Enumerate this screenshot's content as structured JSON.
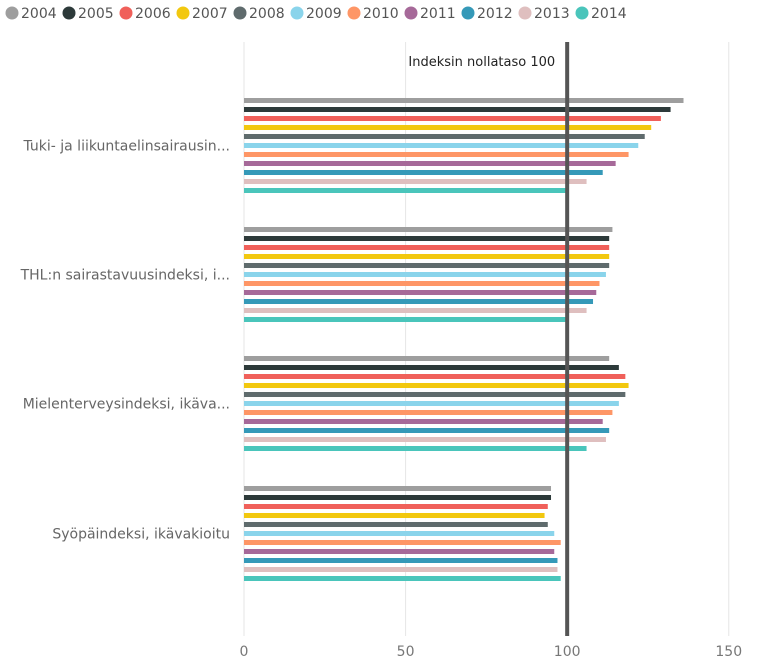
{
  "chart_data": {
    "type": "bar",
    "orientation": "horizontal",
    "categories": [
      "Tuki- ja liikuntaelinsairausin...",
      "THL:n sairastavuusindeksi, i...",
      "Mielenterveysindeksi, ikäva...",
      "Syöpäindeksi, ikävakioitu"
    ],
    "series": [
      {
        "name": "2004",
        "color": "#9e9e9e",
        "values": [
          136,
          114,
          113,
          95
        ]
      },
      {
        "name": "2005",
        "color": "#2d3a3a",
        "values": [
          132,
          113,
          116,
          95
        ]
      },
      {
        "name": "2006",
        "color": "#f0605a",
        "values": [
          129,
          113,
          118,
          94
        ]
      },
      {
        "name": "2007",
        "color": "#f2c80f",
        "values": [
          126,
          113,
          119,
          93
        ]
      },
      {
        "name": "2008",
        "color": "#5f6b6d",
        "values": [
          124,
          113,
          118,
          94
        ]
      },
      {
        "name": "2009",
        "color": "#8ad4eb",
        "values": [
          122,
          112,
          116,
          96
        ]
      },
      {
        "name": "2010",
        "color": "#fe9666",
        "values": [
          119,
          110,
          114,
          98
        ]
      },
      {
        "name": "2011",
        "color": "#a66999",
        "values": [
          115,
          109,
          111,
          96
        ]
      },
      {
        "name": "2012",
        "color": "#3599b8",
        "values": [
          111,
          108,
          113,
          97
        ]
      },
      {
        "name": "2013",
        "color": "#dfbfbf",
        "values": [
          106,
          106,
          112,
          97
        ]
      },
      {
        "name": "2014",
        "color": "#4ac5bb",
        "values": [
          100,
          100,
          106,
          98
        ]
      }
    ],
    "xlim": [
      0,
      164
    ],
    "xticks": [
      "0",
      "50",
      "100",
      "150"
    ],
    "reference_line": {
      "value": 100,
      "label": "Indeksin nollataso 100"
    },
    "legend_position": "top-left",
    "grid": true
  }
}
